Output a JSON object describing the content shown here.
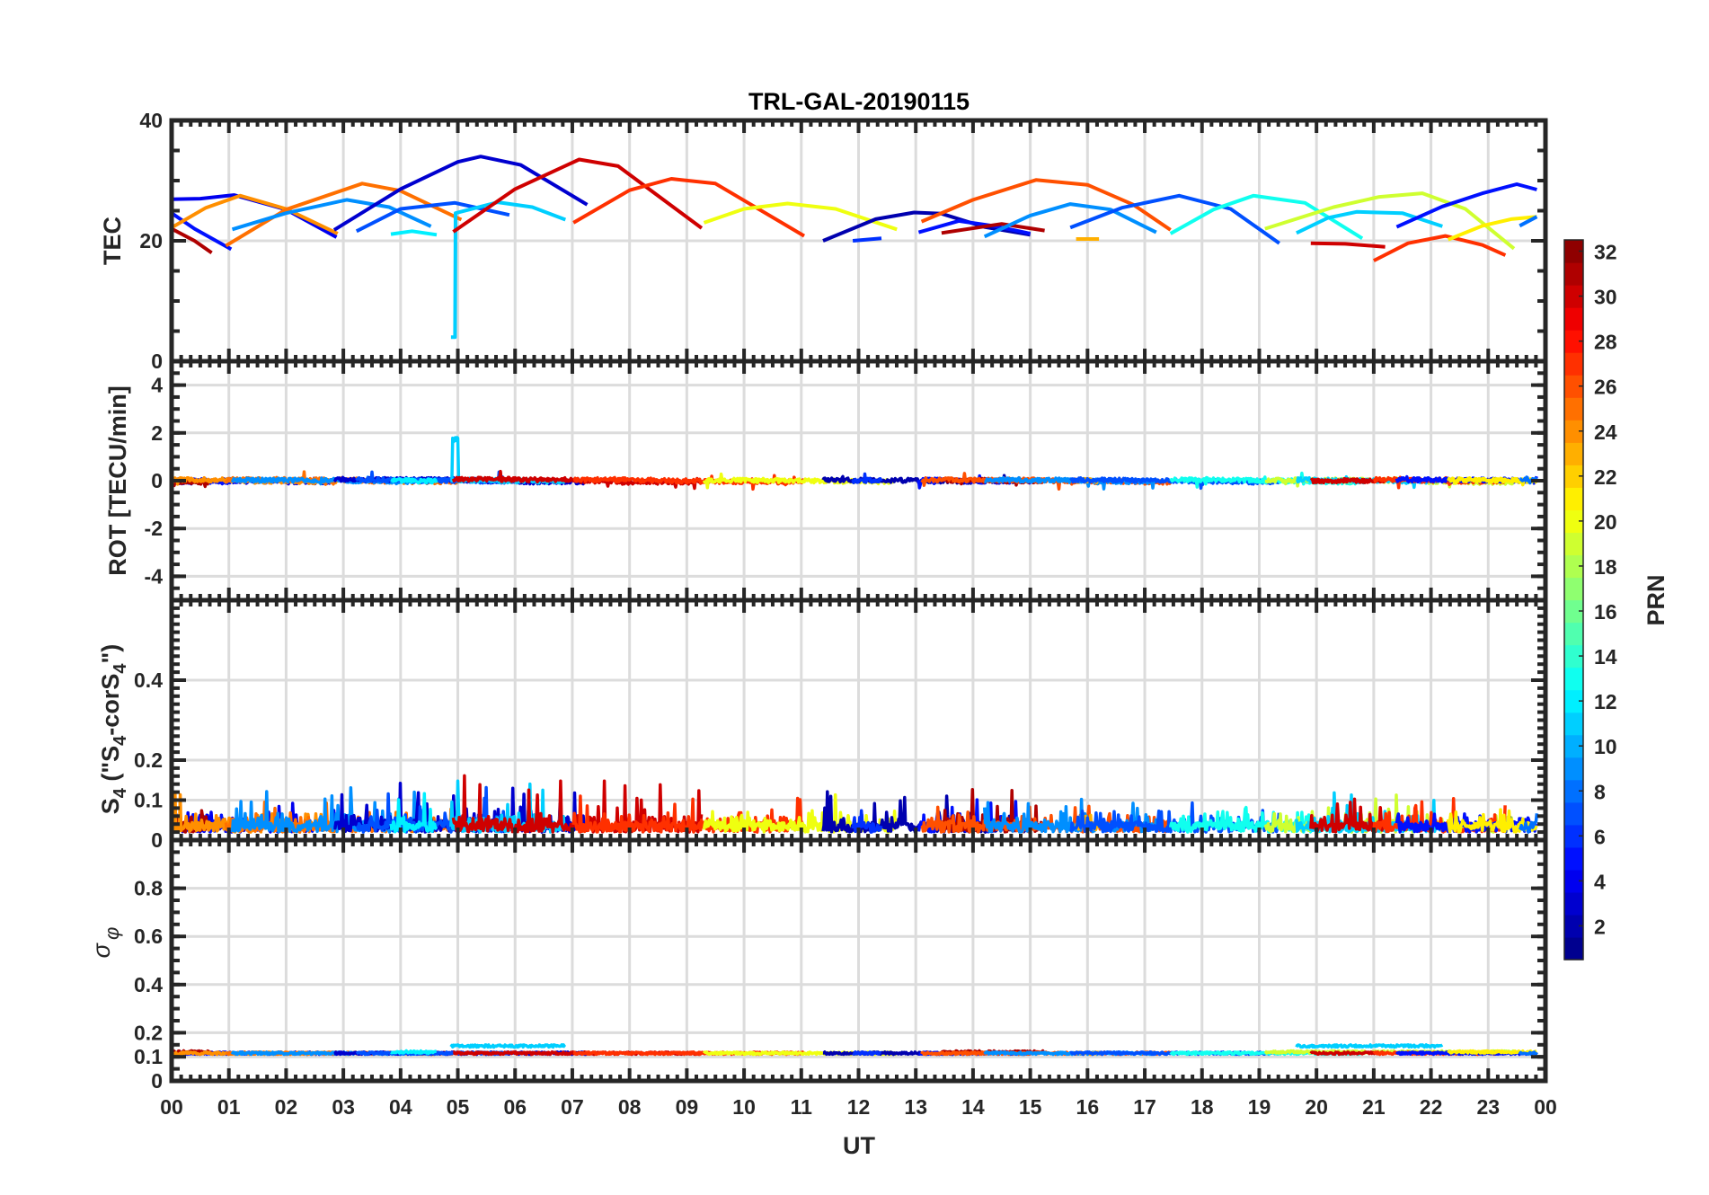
{
  "colors": {
    "axis": "#262626",
    "grid": "#dcdcdc"
  },
  "chart_data": {
    "type": "line",
    "title": "TRL-GAL-20190115",
    "xlabel": "UT",
    "xlim": [
      0,
      24
    ],
    "x_tick_labels": [
      "00",
      "01",
      "02",
      "03",
      "04",
      "05",
      "06",
      "07",
      "08",
      "09",
      "10",
      "11",
      "12",
      "13",
      "14",
      "15",
      "16",
      "17",
      "18",
      "19",
      "20",
      "21",
      "22",
      "23",
      "00"
    ],
    "grid": true,
    "panels": [
      {
        "id": "tec",
        "ylabel": "TEC",
        "ylim": [
          0,
          40
        ],
        "yticks": [
          0,
          20,
          40
        ],
        "ytick_labels": [
          "0",
          "20",
          "40"
        ],
        "minor_step": 5
      },
      {
        "id": "rot",
        "ylabel": "ROT [TECU/min]",
        "ylim": [
          -5,
          5
        ],
        "yticks": [
          -4,
          -2,
          0,
          2,
          4
        ],
        "ytick_labels": [
          "-4",
          "-2",
          "0",
          "2",
          "4"
        ],
        "minor_step": 0.5
      },
      {
        "id": "s4",
        "ylabel_parts": [
          "S",
          "4",
          " (\"S",
          "4",
          "-corS",
          "4",
          "\")"
        ],
        "ylim": [
          0,
          0.6
        ],
        "yticks": [
          0,
          0.1,
          0.2,
          0.4
        ],
        "ytick_labels": [
          "0",
          "0.1",
          "0.2",
          "0.4"
        ],
        "minor_step": 0.02
      },
      {
        "id": "sigma",
        "ylabel_parts": [
          "σ",
          "φ"
        ],
        "ylim": [
          0,
          1
        ],
        "yticks": [
          0,
          0.1,
          0.2,
          0.4,
          0.6,
          0.8
        ],
        "ytick_labels": [
          "0",
          "0.1",
          "0.2",
          "0.4",
          "0.6",
          "0.8"
        ],
        "minor_step": 0.05
      }
    ],
    "colorbar": {
      "label": "PRN",
      "range": [
        1,
        32
      ],
      "levels": 32,
      "colormap": "jet",
      "ticks": [
        2,
        4,
        6,
        8,
        10,
        12,
        14,
        16,
        18,
        20,
        22,
        24,
        26,
        28,
        30,
        32
      ],
      "tick_labels": [
        "2",
        "4",
        "6",
        "8",
        "10",
        "12",
        "14",
        "16",
        "18",
        "20",
        "22",
        "24",
        "26",
        "28",
        "30",
        "32"
      ]
    },
    "series": [
      {
        "prn": 4,
        "tec": [
          [
            0,
            26.9
          ],
          [
            0.5,
            27.0
          ],
          [
            1.09,
            27.6
          ],
          [
            2,
            25.2
          ],
          [
            2.88,
            20.6
          ]
        ],
        "s4_max": 0.09,
        "sigma": 0.115
      },
      {
        "prn": 5,
        "tec": [
          [
            0,
            24.6
          ],
          [
            0.4,
            22
          ],
          [
            1.04,
            18.6
          ]
        ],
        "s4_max": 0.06,
        "sigma": 0.115
      },
      {
        "prn": 31,
        "tec": [
          [
            0,
            22.0
          ],
          [
            0.4,
            20
          ],
          [
            0.7,
            18.0
          ]
        ],
        "s4_max": 0.12,
        "sigma": 0.12
      },
      {
        "prn": 24,
        "tec": [
          [
            0,
            22.2
          ],
          [
            0.6,
            25.5
          ],
          [
            1.2,
            27.5
          ],
          [
            2,
            25.3
          ],
          [
            2.9,
            21.2
          ]
        ],
        "s4_max": 0.13,
        "sigma": 0.115
      },
      {
        "prn": 25,
        "tec": [
          [
            0.95,
            19.2
          ],
          [
            2,
            25.2
          ],
          [
            3.33,
            29.5
          ],
          [
            4,
            28.3
          ],
          [
            5.06,
            23.5
          ]
        ],
        "s4_max": 0.1,
        "sigma": 0.115
      },
      {
        "prn": 9,
        "tec": [
          [
            1.06,
            21.9
          ],
          [
            2,
            24.6
          ],
          [
            3.06,
            26.8
          ],
          [
            3.8,
            25.6
          ],
          [
            4.53,
            22.4
          ]
        ],
        "s4_max": 0.13,
        "sigma": 0.115
      },
      {
        "prn": 3,
        "tec": [
          [
            2.84,
            21.8
          ],
          [
            4,
            28.6
          ],
          [
            5,
            33.1
          ],
          [
            5.4,
            34.0
          ],
          [
            6.1,
            32.6
          ],
          [
            7.26,
            26.0
          ]
        ],
        "s4_max": 0.15,
        "sigma": 0.115
      },
      {
        "prn": 7,
        "tec": [
          [
            3.23,
            21.6
          ],
          [
            4,
            25.3
          ],
          [
            4.95,
            26.3
          ],
          [
            5.9,
            24.3
          ]
        ],
        "s4_max": 0.15,
        "sigma": 0.115
      },
      {
        "prn": 12,
        "tec": [
          [
            3.83,
            21.1
          ],
          [
            4.2,
            21.6
          ],
          [
            4.63,
            21.0
          ]
        ],
        "s4_max": 0.14,
        "sigma": 0.12
      },
      {
        "prn": 11,
        "tec": [
          [
            4.88,
            4.0
          ],
          [
            4.95,
            4.0
          ],
          [
            4.96,
            24.6
          ],
          [
            5.7,
            26.4
          ],
          [
            6.3,
            25.6
          ],
          [
            6.88,
            23.5
          ]
        ],
        "s4_max": 0.16,
        "sigma": 0.145
      },
      {
        "prn": 30,
        "tec": [
          [
            4.92,
            21.5
          ],
          [
            6,
            28.6
          ],
          [
            7.12,
            33.5
          ],
          [
            7.8,
            32.4
          ],
          [
            9.26,
            22.1
          ]
        ],
        "s4_max": 0.16,
        "sigma": 0.115
      },
      {
        "prn": 27,
        "tec": [
          [
            7.02,
            23.0
          ],
          [
            8,
            28.4
          ],
          [
            8.73,
            30.3
          ],
          [
            9.5,
            29.5
          ],
          [
            11.05,
            20.8
          ]
        ],
        "s4_max": 0.11,
        "sigma": 0.115
      },
      {
        "prn": 20,
        "tec": [
          [
            9.3,
            23.0
          ],
          [
            10,
            25.3
          ],
          [
            10.76,
            26.2
          ],
          [
            11.6,
            25.3
          ],
          [
            12.67,
            21.9
          ]
        ],
        "s4_max": 0.14,
        "sigma": 0.115
      },
      {
        "prn": 2,
        "tec": [
          [
            11.38,
            20.0
          ],
          [
            12.3,
            23.6
          ],
          [
            12.97,
            24.7
          ],
          [
            13.45,
            24.5
          ],
          [
            14.2,
            22.3
          ],
          [
            15.0,
            21.0
          ]
        ],
        "s4_max": 0.13,
        "sigma": 0.115
      },
      {
        "prn": 6,
        "tec": [
          [
            11.9,
            20.0
          ],
          [
            12.4,
            20.4
          ]
        ],
        "s4_max": 0.08,
        "sigma": 0.115
      },
      {
        "prn": 5,
        "tec": [
          [
            13.05,
            21.4
          ],
          [
            13.75,
            23.3
          ],
          [
            14.4,
            22.4
          ],
          [
            15.0,
            21.2
          ]
        ],
        "s4_max": 0.12,
        "sigma": 0.115
      },
      {
        "prn": 31,
        "tec": [
          [
            13.45,
            21.3
          ],
          [
            14.5,
            22.8
          ],
          [
            15.25,
            21.7
          ]
        ],
        "s4_max": 0.14,
        "sigma": 0.12
      },
      {
        "prn": 26,
        "tec": [
          [
            13.1,
            23.2
          ],
          [
            14,
            26.8
          ],
          [
            15.1,
            30.1
          ],
          [
            16,
            29.3
          ],
          [
            16.8,
            26
          ],
          [
            17.45,
            21.8
          ]
        ],
        "s4_max": 0.09,
        "sigma": 0.115
      },
      {
        "prn": 9,
        "tec": [
          [
            14.2,
            20.7
          ],
          [
            15,
            24.2
          ],
          [
            15.7,
            26.1
          ],
          [
            16.4,
            25.2
          ],
          [
            17.2,
            21.4
          ]
        ],
        "s4_max": 0.11,
        "sigma": 0.115
      },
      {
        "prn": 23,
        "tec": [
          [
            15.8,
            20.3
          ],
          [
            16.2,
            20.3
          ]
        ],
        "s4_max": 0.05,
        "sigma": 0.115
      },
      {
        "prn": 7,
        "tec": [
          [
            15.7,
            22.2
          ],
          [
            16.6,
            25.5
          ],
          [
            17.6,
            27.5
          ],
          [
            18.5,
            25.3
          ],
          [
            19.35,
            19.6
          ]
        ],
        "s4_max": 0.09,
        "sigma": 0.115
      },
      {
        "prn": 13,
        "tec": [
          [
            17.45,
            21.2
          ],
          [
            18.2,
            25.2
          ],
          [
            18.9,
            27.5
          ],
          [
            19.8,
            26.3
          ],
          [
            20.8,
            20.4
          ]
        ],
        "s4_max": 0.08,
        "sigma": 0.115
      },
      {
        "prn": 19,
        "tec": [
          [
            19.1,
            22.0
          ],
          [
            20.3,
            25.6
          ],
          [
            21.1,
            27.3
          ],
          [
            21.85,
            27.9
          ],
          [
            22.6,
            25.3
          ],
          [
            23.45,
            18.7
          ]
        ],
        "s4_max": 0.11,
        "sigma": 0.12
      },
      {
        "prn": 11,
        "tec": [
          [
            19.65,
            21.3
          ],
          [
            20.2,
            23.8
          ],
          [
            20.7,
            24.8
          ],
          [
            21.5,
            24.6
          ],
          [
            22.2,
            22.4
          ]
        ],
        "s4_max": 0.12,
        "sigma": 0.145
      },
      {
        "prn": 30,
        "tec": [
          [
            19.9,
            19.6
          ],
          [
            20.5,
            19.5
          ],
          [
            21.2,
            19.0
          ]
        ],
        "s4_max": 0.15,
        "sigma": 0.115
      },
      {
        "prn": 27,
        "tec": [
          [
            21.0,
            16.7
          ],
          [
            21.6,
            19.6
          ],
          [
            22.25,
            20.8
          ],
          [
            22.9,
            19.3
          ],
          [
            23.3,
            17.6
          ]
        ],
        "s4_max": 0.12,
        "sigma": 0.115
      },
      {
        "prn": 5,
        "tec": [
          [
            21.4,
            22.3
          ],
          [
            22.2,
            25.7
          ],
          [
            22.9,
            27.9
          ],
          [
            23.5,
            29.4
          ],
          [
            23.85,
            28.5
          ]
        ],
        "s4_max": 0.06,
        "sigma": 0.115
      },
      {
        "prn": 21,
        "tec": [
          [
            22.3,
            20.2
          ],
          [
            22.9,
            22.5
          ],
          [
            23.4,
            23.6
          ],
          [
            23.85,
            24.0
          ]
        ],
        "s4_max": 0.1,
        "sigma": 0.12
      },
      {
        "prn": 8,
        "tec": [
          [
            23.55,
            22.5
          ],
          [
            23.85,
            24.0
          ]
        ],
        "s4_max": 0.05,
        "sigma": 0.115
      }
    ]
  }
}
